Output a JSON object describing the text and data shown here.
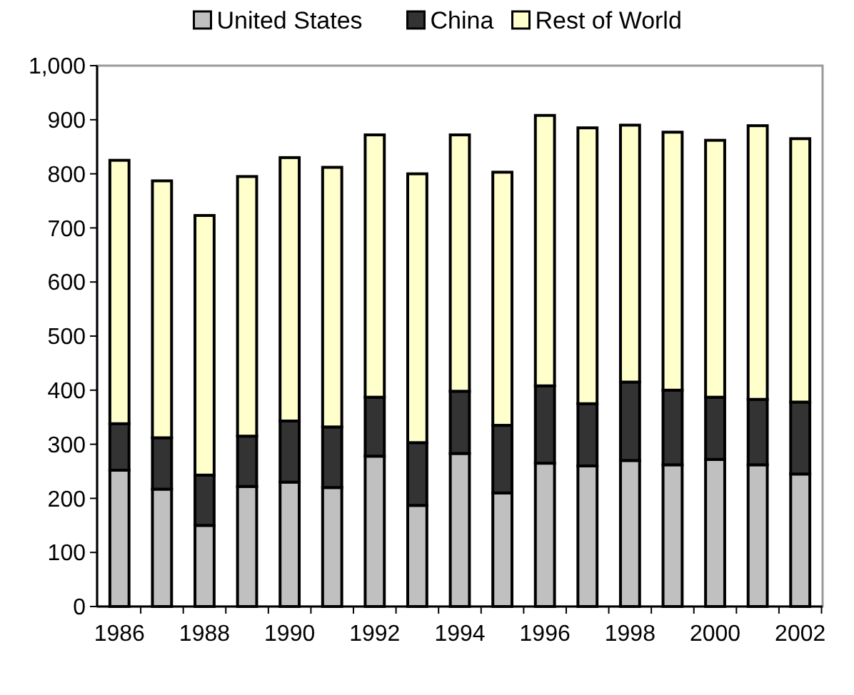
{
  "chart_data": {
    "type": "bar",
    "stacked": true,
    "categories": [
      "1986",
      null,
      "1988",
      null,
      "1990",
      null,
      "1992",
      null,
      "1994",
      null,
      "1996",
      null,
      "1998",
      null,
      "2000",
      null,
      "2002"
    ],
    "series": [
      {
        "name": "United States",
        "color": "#c0c0c0",
        "values": [
          252,
          217,
          150,
          222,
          230,
          220,
          278,
          187,
          283,
          210,
          265,
          260,
          270,
          262,
          272,
          262,
          245
        ]
      },
      {
        "name": "China",
        "color": "#333333",
        "values": [
          86,
          95,
          93,
          93,
          113,
          112,
          109,
          116,
          115,
          125,
          143,
          115,
          145,
          138,
          115,
          121,
          133
        ]
      },
      {
        "name": "Rest of World",
        "color": "#ffffcc",
        "values": [
          487,
          475,
          480,
          480,
          487,
          480,
          485,
          497,
          474,
          468,
          500,
          510,
          475,
          477,
          475,
          506,
          487
        ]
      }
    ],
    "ylim": [
      0,
      1000
    ],
    "yticks": [
      0,
      {
        "value": 100,
        "label": "100"
      },
      {
        "value": 200,
        "label": "200"
      },
      {
        "value": 300,
        "label": "300"
      },
      {
        "value": 400,
        "label": "400"
      },
      {
        "value": 500,
        "label": "500"
      },
      {
        "value": 600,
        "label": "600"
      },
      {
        "value": 700,
        "label": "700"
      },
      {
        "value": 800,
        "label": "800"
      },
      {
        "value": 900,
        "label": "900"
      },
      {
        "value": 1000,
        "label": "1,000"
      }
    ],
    "legend": "top",
    "grid": false
  }
}
